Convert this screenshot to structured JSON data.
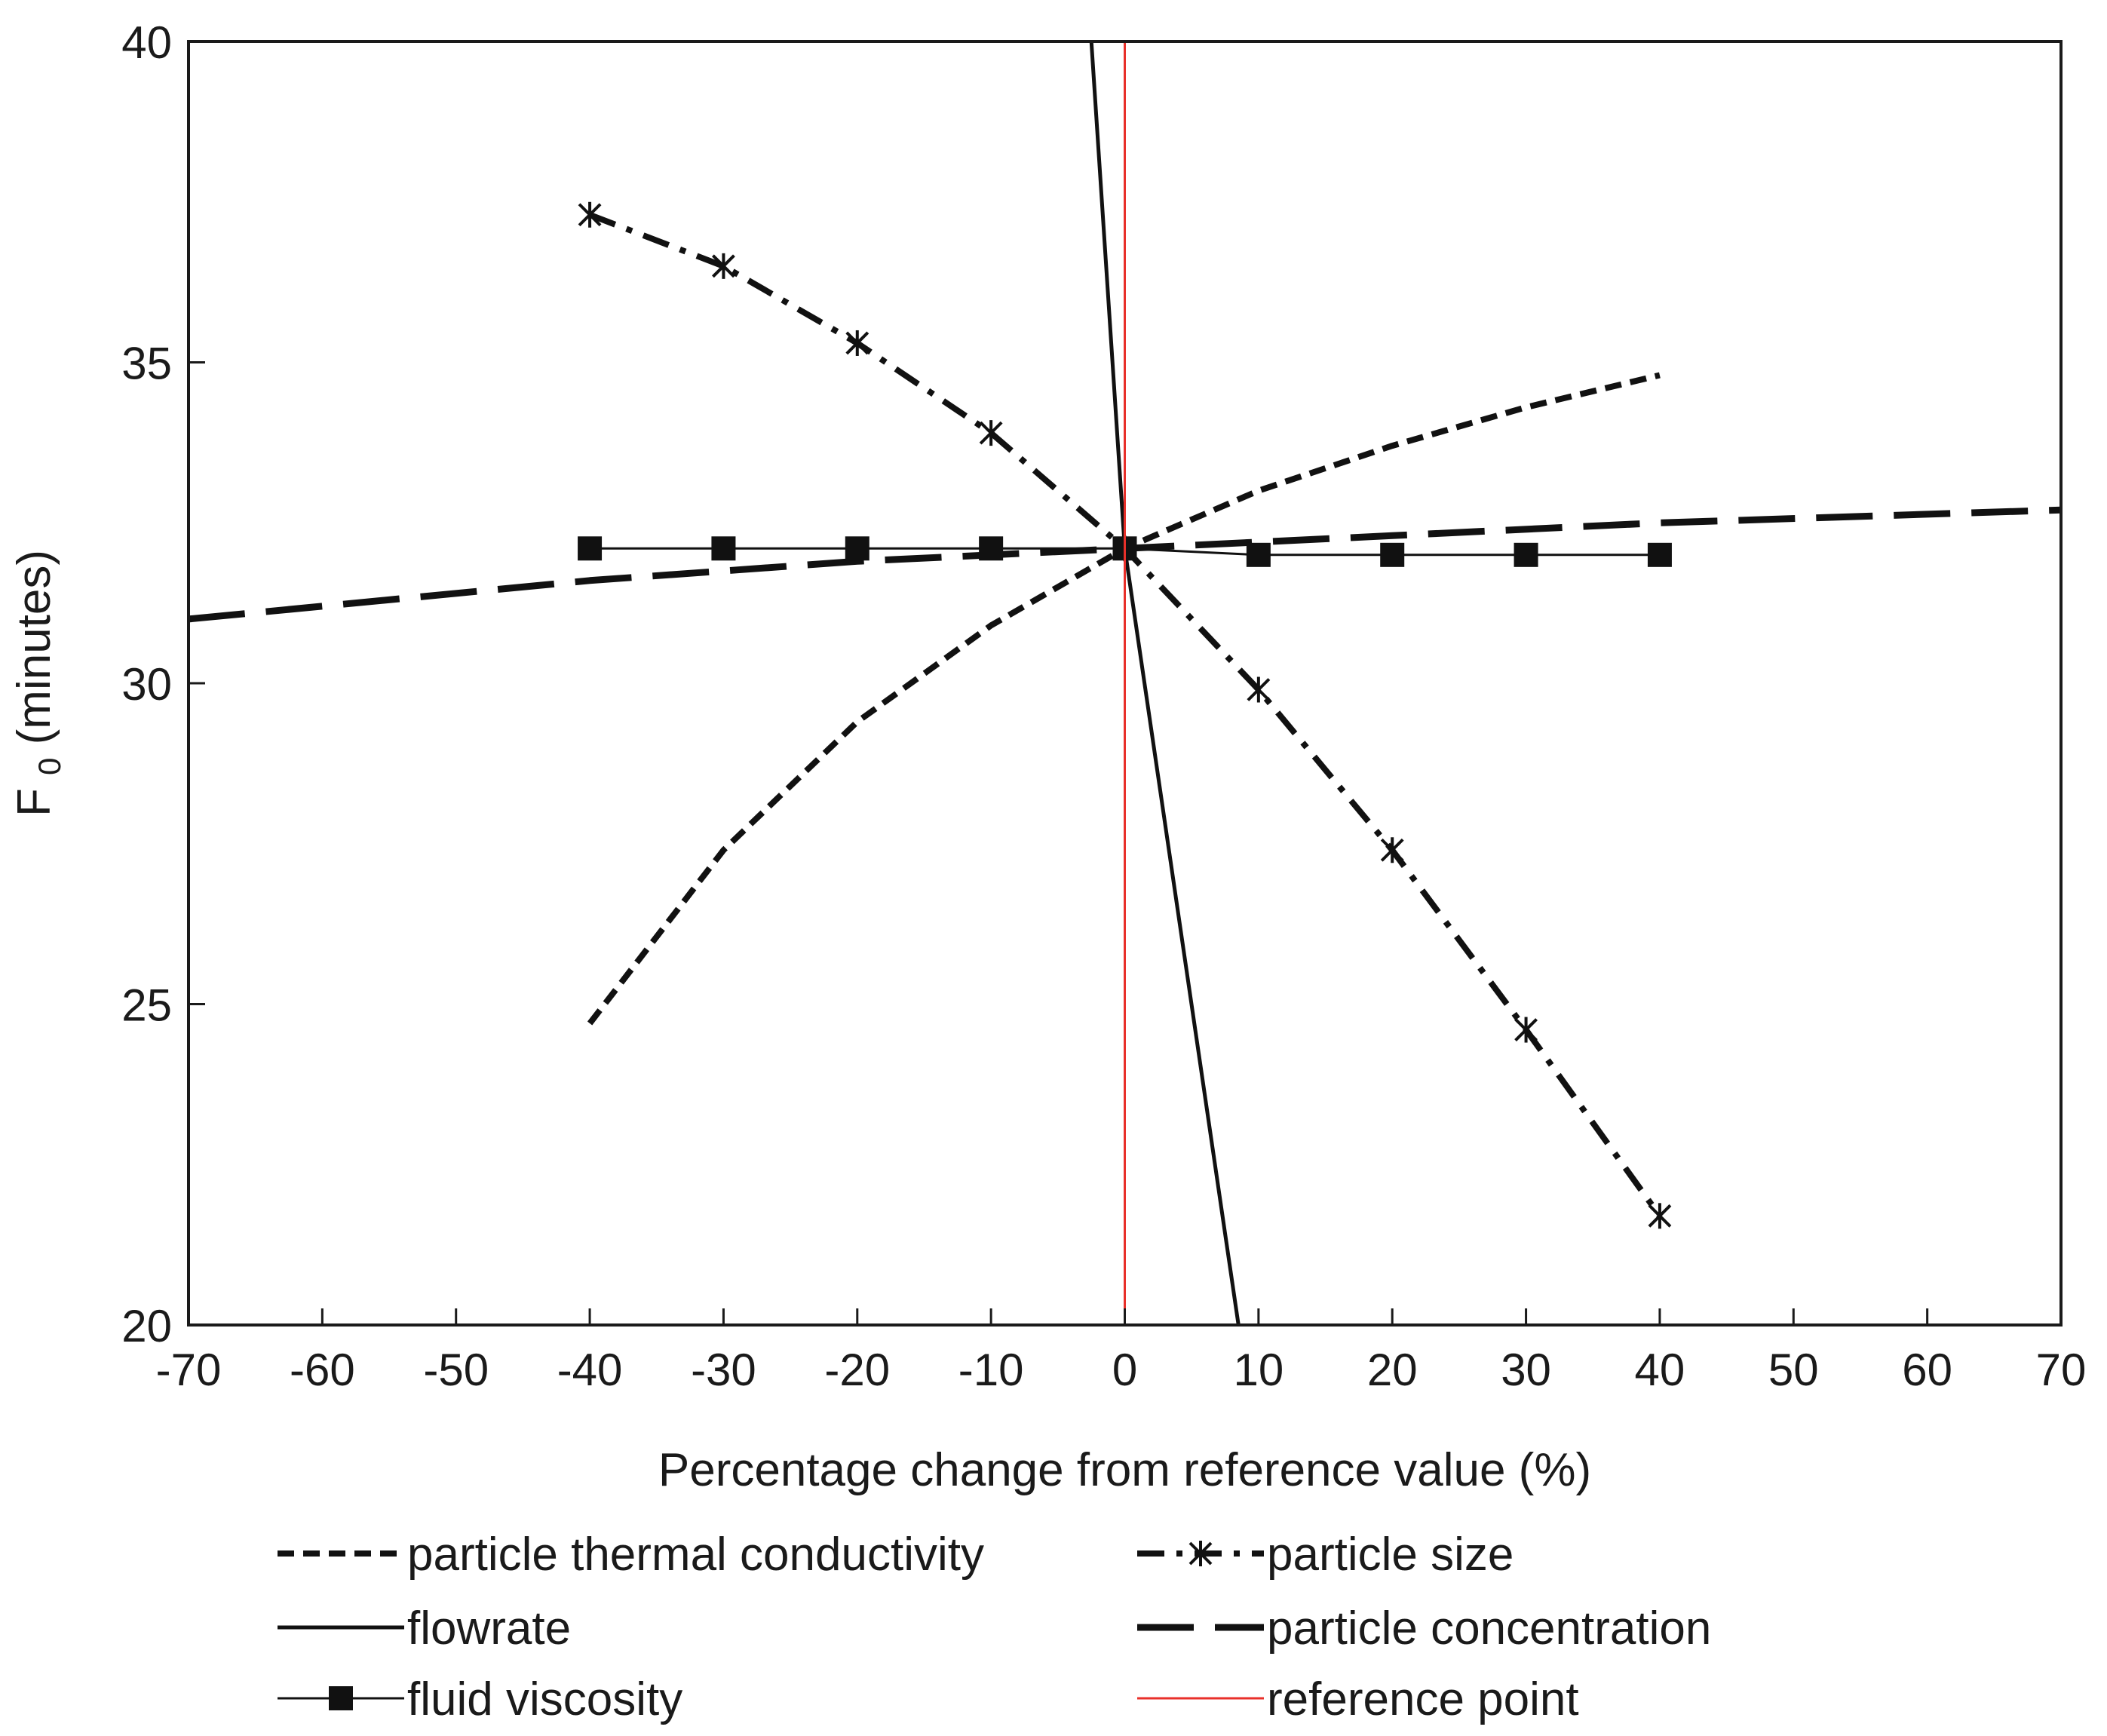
{
  "chart_data": {
    "type": "line",
    "title": "",
    "xlabel": "Percentage change from reference value (%)",
    "ylabel_main": "F",
    "ylabel_sub": "0",
    "ylabel_rest": " (minutes)",
    "xlim": [
      -70,
      70
    ],
    "ylim": [
      20,
      40
    ],
    "xticks": [
      -70,
      -60,
      -50,
      -40,
      -30,
      -20,
      -10,
      0,
      10,
      20,
      30,
      40,
      50,
      60,
      70
    ],
    "yticks": [
      20,
      25,
      30,
      35,
      40
    ],
    "grid": false,
    "legend_position": "bottom",
    "series": [
      {
        "name": "particle thermal conductivity",
        "style": "short-dash",
        "marker": "none",
        "color": "#111111",
        "x": [
          -40,
          -30,
          -20,
          -10,
          0,
          10,
          20,
          30,
          40
        ],
        "y": [
          24.7,
          27.4,
          29.4,
          30.9,
          32.1,
          33.0,
          33.7,
          34.3,
          34.8
        ]
      },
      {
        "name": "particle size",
        "style": "dash-dot",
        "marker": "asterisk",
        "color": "#111111",
        "x": [
          -40,
          -30,
          -20,
          -10,
          0,
          10,
          20,
          30,
          40
        ],
        "y": [
          37.3,
          36.5,
          35.3,
          33.9,
          32.1,
          29.9,
          27.4,
          24.6,
          21.7
        ]
      },
      {
        "name": "flowrate",
        "style": "solid",
        "marker": "none",
        "color": "#111111",
        "x": [
          -2.5,
          0,
          8.5
        ],
        "y": [
          40,
          32.1,
          20
        ]
      },
      {
        "name": "particle concentration",
        "style": "long-dash",
        "marker": "none",
        "color": "#111111",
        "x": [
          -70,
          -40,
          -20,
          0,
          20,
          40,
          70
        ],
        "y": [
          31.0,
          31.6,
          31.9,
          32.1,
          32.3,
          32.5,
          32.7
        ]
      },
      {
        "name": "fluid viscosity",
        "style": "solid-thin",
        "marker": "square",
        "color": "#111111",
        "x": [
          -40,
          -30,
          -20,
          -10,
          0,
          10,
          20,
          30,
          40
        ],
        "y": [
          32.1,
          32.1,
          32.1,
          32.1,
          32.1,
          32.0,
          32.0,
          32.0,
          32.0
        ]
      },
      {
        "name": "reference point",
        "style": "solid-red",
        "marker": "none",
        "color": "#e8302a",
        "x": [
          0,
          0
        ],
        "y": [
          20,
          40
        ]
      }
    ]
  }
}
